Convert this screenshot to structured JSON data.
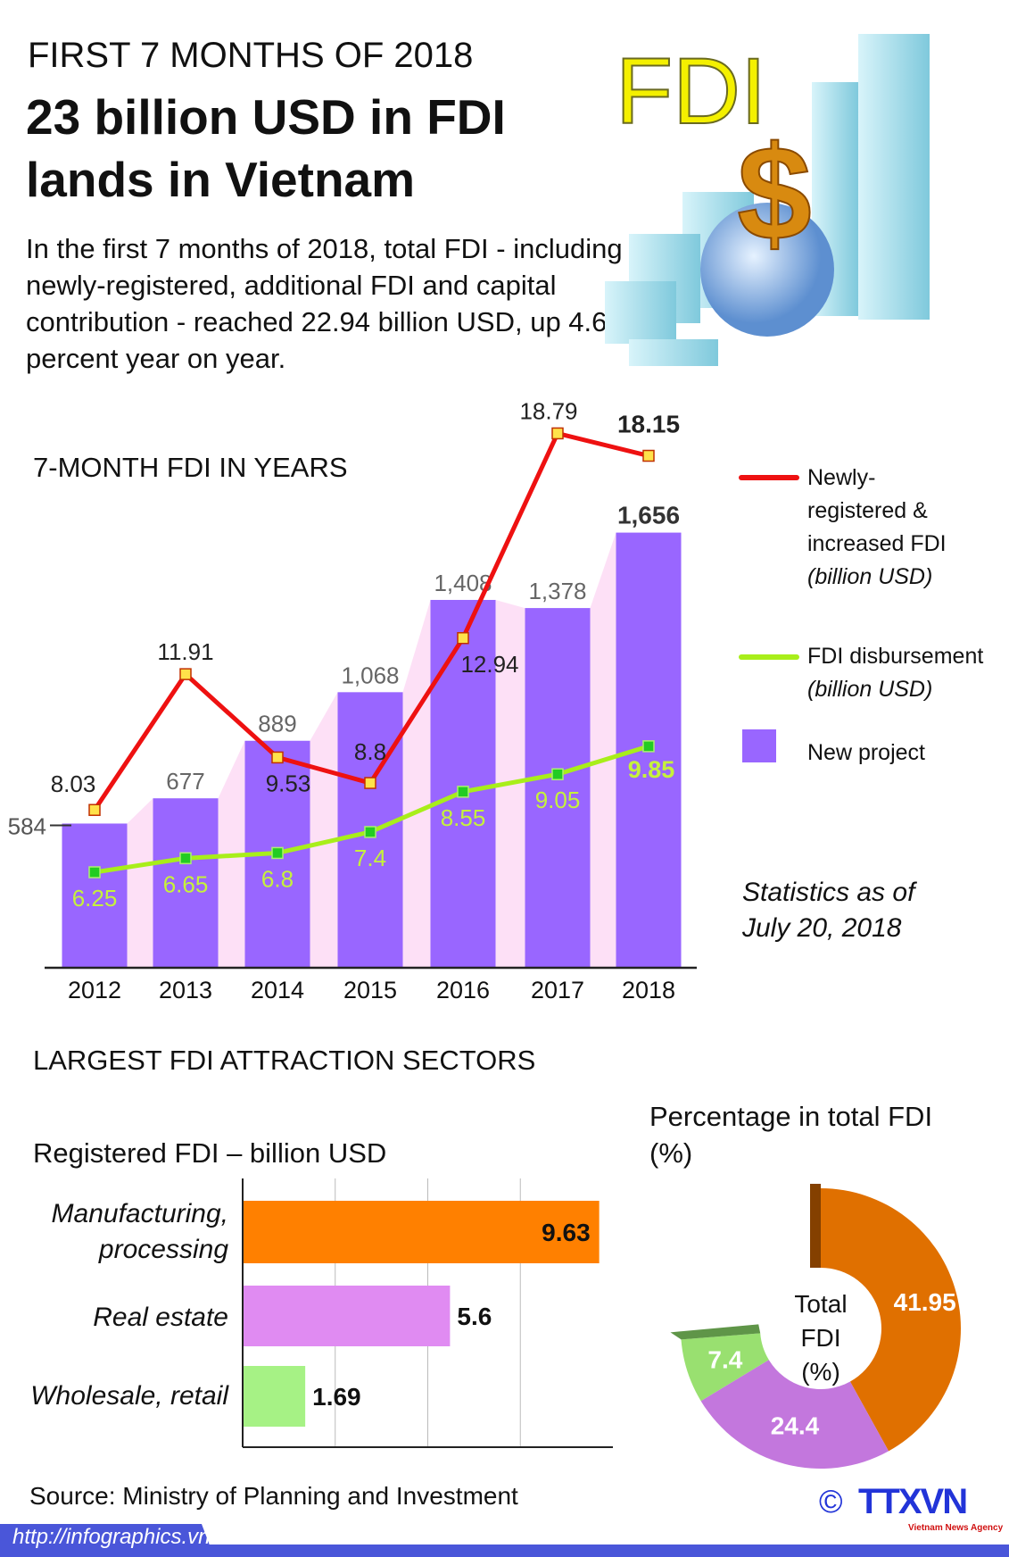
{
  "header": {
    "kicker": "FIRST 7 MONTHS OF 2018",
    "title_line1": "23 billion USD in FDI",
    "title_line2": "lands in Vietnam",
    "intro": "In the first 7 months of 2018, total FDI - including newly-registered, additional FDI and capital contribution - reached 22.94 billion USD, up 4.6 percent year on year.",
    "illustration_text": "FDI"
  },
  "colors": {
    "red_line": "#ee1111",
    "green_line": "#a8ee1a",
    "bar_purple": "#9966ff",
    "pink_bg": "#fde0f6",
    "orange": "#ff8000",
    "violet": "#e08bf2",
    "light_green": "#a6f285",
    "donut_orange": "#e07000",
    "donut_purple": "#c377dd",
    "donut_green": "#99e070",
    "footer_blue": "#4a56d9"
  },
  "chart_data": [
    {
      "type": "bar+line",
      "title": "7-MONTH FDI IN YEARS",
      "categories": [
        "2012",
        "2013",
        "2014",
        "2015",
        "2016",
        "2017",
        "2018"
      ],
      "series": [
        {
          "name": "New project",
          "type": "bar",
          "values": [
            584,
            677,
            889,
            1068,
            1408,
            1378,
            1656
          ],
          "labels": [
            "584",
            "677",
            "889",
            "1,068",
            "1,408",
            "1,378",
            "1,656"
          ]
        },
        {
          "name": "Newly-registered & increased FDI (billion USD)",
          "type": "line",
          "values": [
            8.03,
            11.91,
            9.53,
            8.8,
            12.94,
            18.79,
            18.15
          ],
          "labels": [
            "8.03",
            "11.91",
            "9.53",
            "8.8",
            "12.94",
            "18.79",
            "18.15"
          ]
        },
        {
          "name": "FDI disbursement (billion USD)",
          "type": "line",
          "values": [
            6.25,
            6.65,
            6.8,
            7.4,
            8.55,
            9.05,
            9.85
          ],
          "labels": [
            "6.25",
            "6.65",
            "6.8",
            "7.4",
            "8.55",
            "9.05",
            "9.85"
          ]
        }
      ],
      "legend": {
        "red_lines": [
          "Newly-",
          "registered &",
          "increased FDI",
          "(billion USD)"
        ],
        "green_lines": [
          "FDI disbursement",
          "(billion USD)"
        ],
        "bar_label": "New project",
        "placement": "right"
      },
      "note_lines": [
        "Statistics as of",
        "July 20, 2018"
      ]
    },
    {
      "type": "bar",
      "orientation": "horizontal",
      "title": "Registered FDI – billion USD",
      "categories": [
        "Manufacturing, processing",
        "Real estate",
        "Wholesale, retail"
      ],
      "category_lines": [
        [
          "Manufacturing,",
          "processing"
        ],
        [
          "Real estate"
        ],
        [
          "Wholesale, retail"
        ]
      ],
      "values": [
        9.63,
        5.6,
        1.69
      ],
      "labels": [
        "9.63",
        "5.6",
        "1.69"
      ],
      "xlim": [
        0,
        10
      ],
      "grid_step": 2.5
    },
    {
      "type": "pie",
      "title": "Percentage in total FDI",
      "subtitle": "(%)",
      "center_lines": [
        "Total",
        "FDI",
        "(%)"
      ],
      "categories": [
        "Manufacturing, processing",
        "Real estate",
        "Wholesale, retail"
      ],
      "values": [
        41.95,
        24.4,
        7.4
      ],
      "labels": [
        "41.95",
        "24.4",
        "7.4"
      ]
    }
  ],
  "section2_title": "LARGEST FDI ATTRACTION SECTORS",
  "footer": {
    "source": "Source: Ministry of Planning and Investment",
    "url": "http://infographics.vn",
    "copyright": "©",
    "logo": "TTXVN",
    "logo_sub": "Vietnam News Agency"
  }
}
